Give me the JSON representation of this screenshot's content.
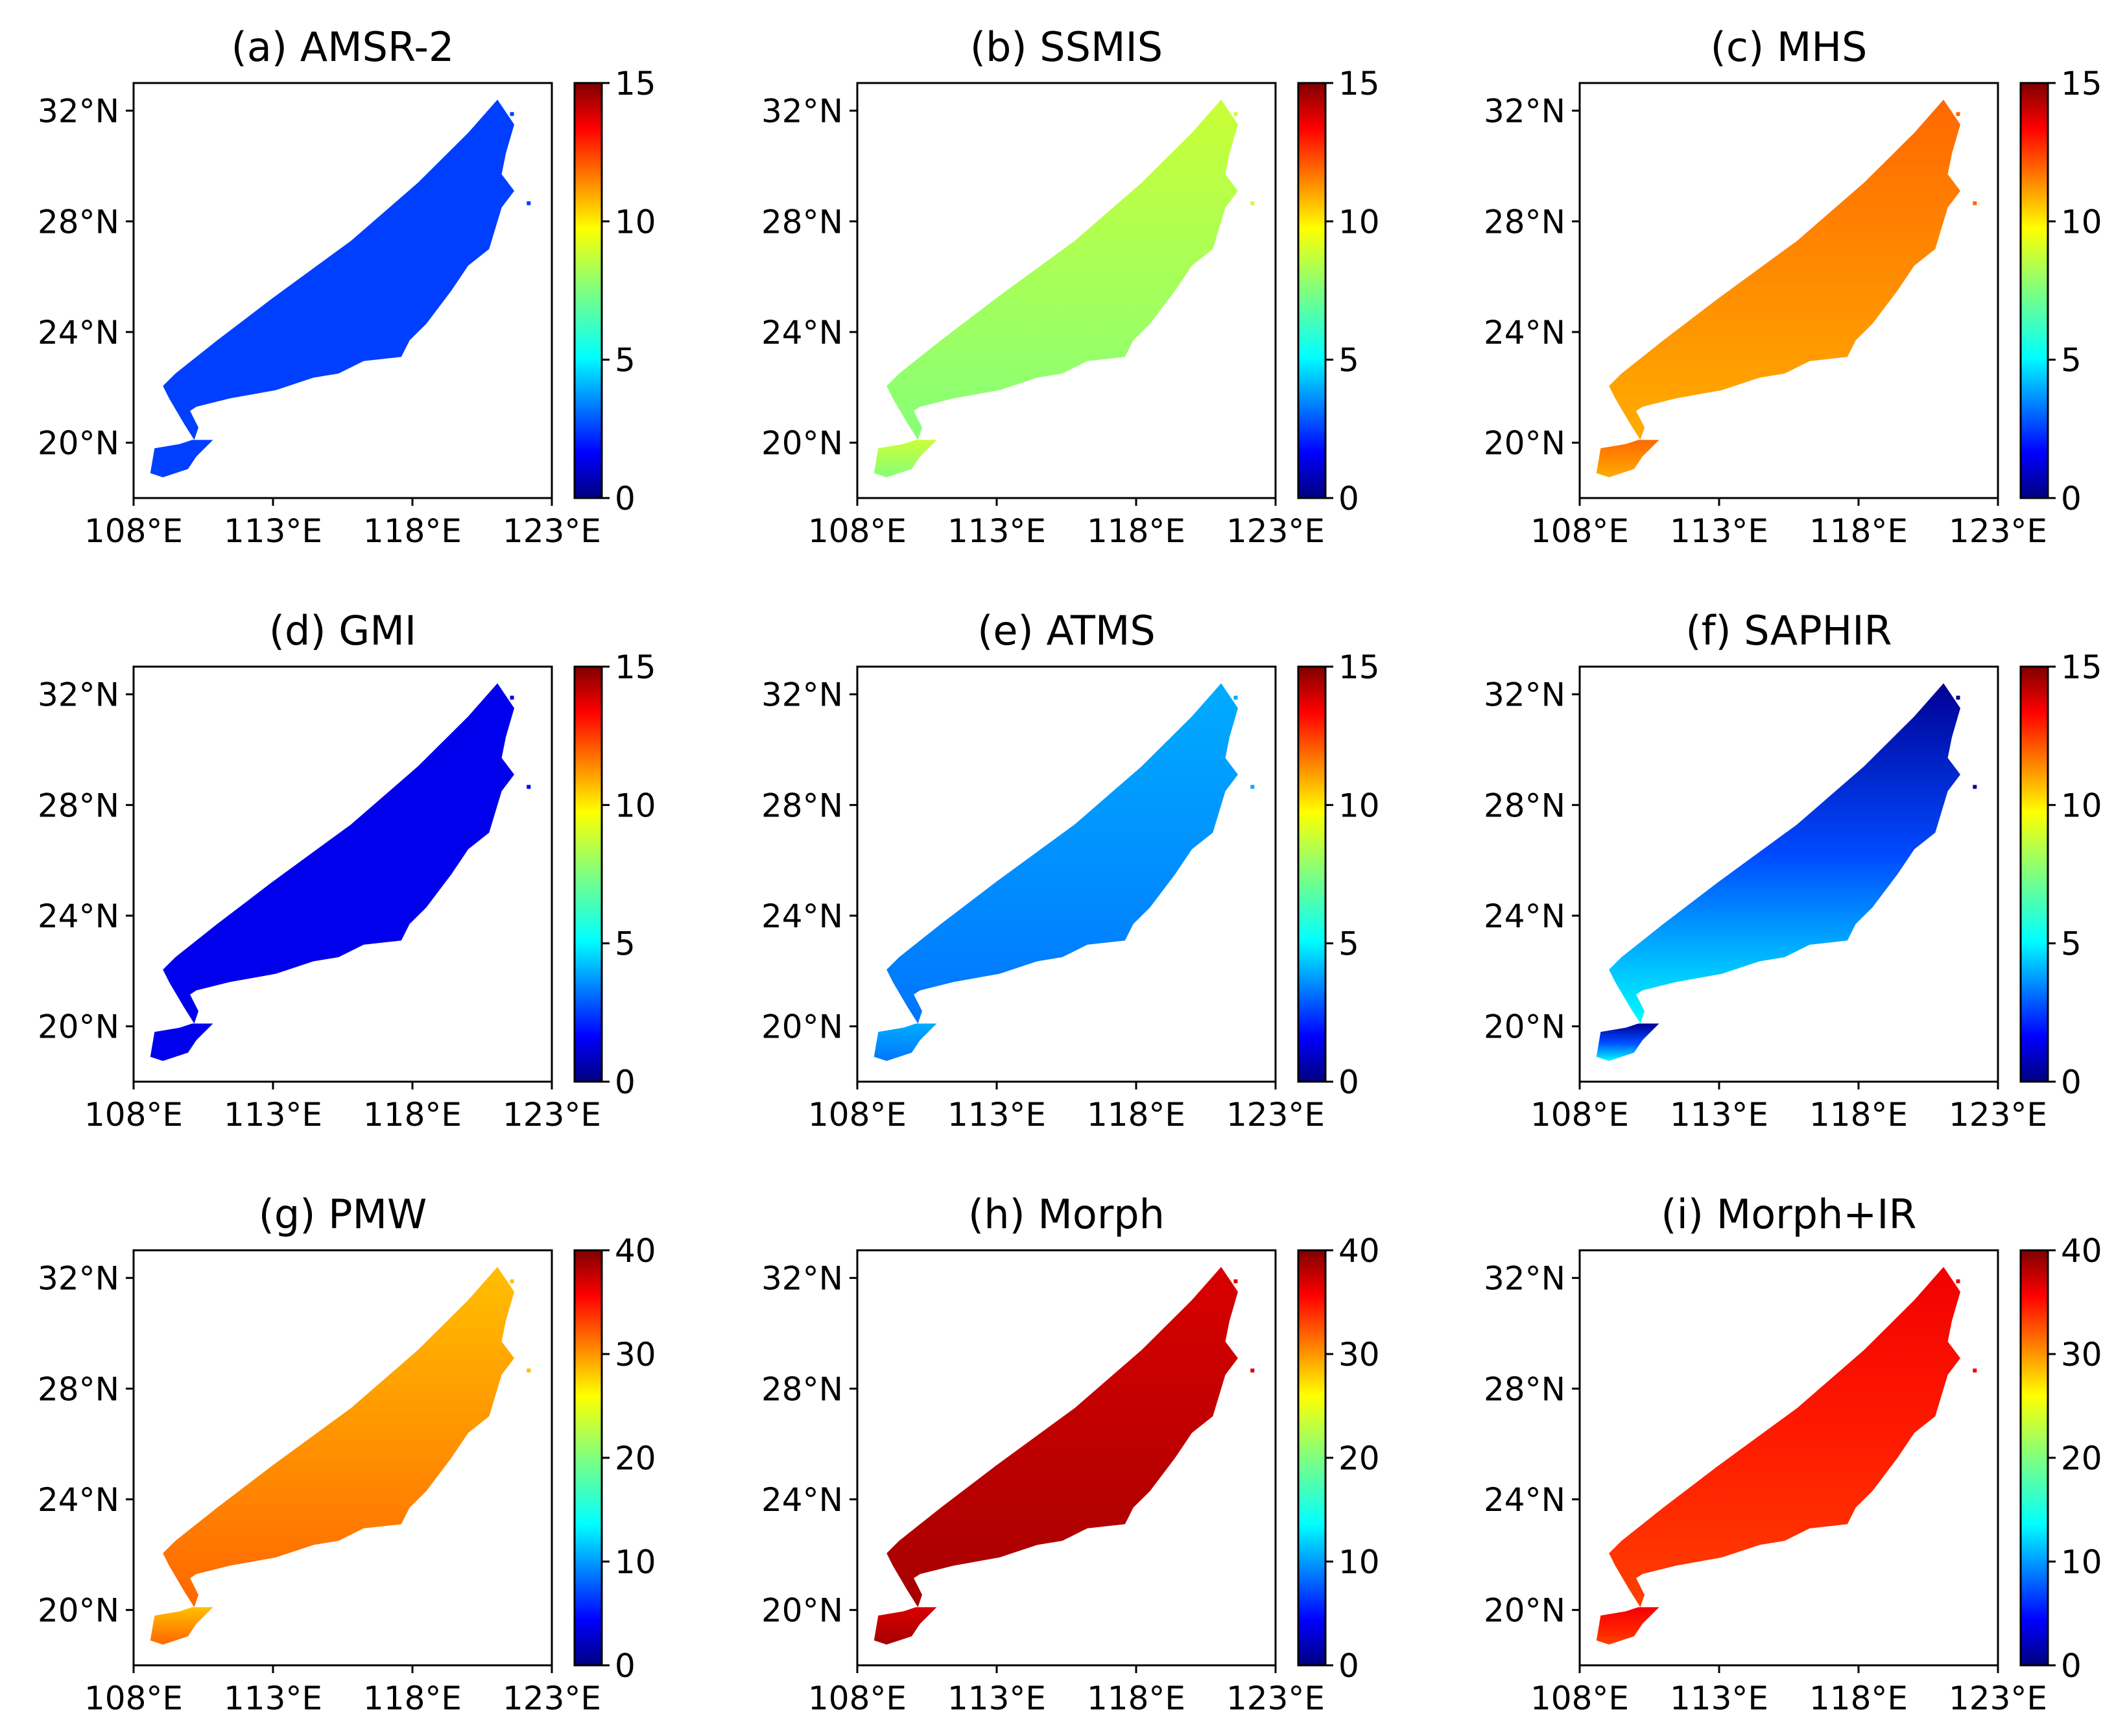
{
  "figure": {
    "lat_ticks": [
      "20°N",
      "24°N",
      "28°N",
      "32°N"
    ],
    "lon_ticks": [
      "108°E",
      "113°E",
      "118°E",
      "123°E"
    ]
  },
  "chart_data": [
    {
      "type": "heatmap",
      "title": "(a) AMSR-2",
      "colorbar_ticks": [
        "0",
        "5",
        "10",
        "15"
      ],
      "vmin": 0,
      "vmax": 15,
      "value_north": 2.8,
      "value_south": 2.8,
      "xlim": [
        108,
        123
      ],
      "ylim": [
        18,
        33
      ]
    },
    {
      "type": "heatmap",
      "title": "(b) SSMIS",
      "colorbar_ticks": [
        "0",
        "5",
        "10",
        "15"
      ],
      "vmin": 0,
      "vmax": 15,
      "value_north": 8.6,
      "value_south": 7.6,
      "xlim": [
        108,
        123
      ],
      "ylim": [
        18,
        33
      ]
    },
    {
      "type": "heatmap",
      "title": "(c) MHS",
      "colorbar_ticks": [
        "0",
        "5",
        "10",
        "15"
      ],
      "vmin": 0,
      "vmax": 15,
      "value_north": 11.6,
      "value_south": 10.6,
      "xlim": [
        108,
        123
      ],
      "ylim": [
        18,
        33
      ]
    },
    {
      "type": "heatmap",
      "title": "(d) GMI",
      "colorbar_ticks": [
        "0",
        "5",
        "10",
        "15"
      ],
      "vmin": 0,
      "vmax": 15,
      "value_north": 1.6,
      "value_south": 1.6,
      "xlim": [
        108,
        123
      ],
      "ylim": [
        18,
        33
      ]
    },
    {
      "type": "heatmap",
      "title": "(e) ATMS",
      "colorbar_ticks": [
        "0",
        "5",
        "10",
        "15"
      ],
      "vmin": 0,
      "vmax": 15,
      "value_north": 4.4,
      "value_south": 3.6,
      "xlim": [
        108,
        123
      ],
      "ylim": [
        18,
        33
      ]
    },
    {
      "type": "heatmap",
      "title": "(f) SAPHIR",
      "colorbar_ticks": [
        "0",
        "5",
        "10",
        "15"
      ],
      "vmin": 0,
      "vmax": 15,
      "value_north": 0.3,
      "value_south": 5.6,
      "xlim": [
        108,
        123
      ],
      "ylim": [
        18,
        33
      ]
    },
    {
      "type": "heatmap",
      "title": "(g) PMW",
      "colorbar_ticks": [
        "0",
        "10",
        "20",
        "30",
        "40"
      ],
      "vmin": 0,
      "vmax": 40,
      "value_north": 27.5,
      "value_south": 31.0,
      "xlim": [
        108,
        123
      ],
      "ylim": [
        18,
        33
      ]
    },
    {
      "type": "heatmap",
      "title": "(h) Morph",
      "colorbar_ticks": [
        "0",
        "10",
        "20",
        "30",
        "40"
      ],
      "vmin": 0,
      "vmax": 40,
      "value_north": 36.5,
      "value_south": 38.5,
      "xlim": [
        108,
        123
      ],
      "ylim": [
        18,
        33
      ]
    },
    {
      "type": "heatmap",
      "title": "(i) Morph+IR",
      "colorbar_ticks": [
        "0",
        "10",
        "20",
        "30",
        "40"
      ],
      "vmin": 0,
      "vmax": 40,
      "value_north": 35.5,
      "value_south": 32.5,
      "xlim": [
        108,
        123
      ],
      "ylim": [
        18,
        33
      ]
    }
  ]
}
